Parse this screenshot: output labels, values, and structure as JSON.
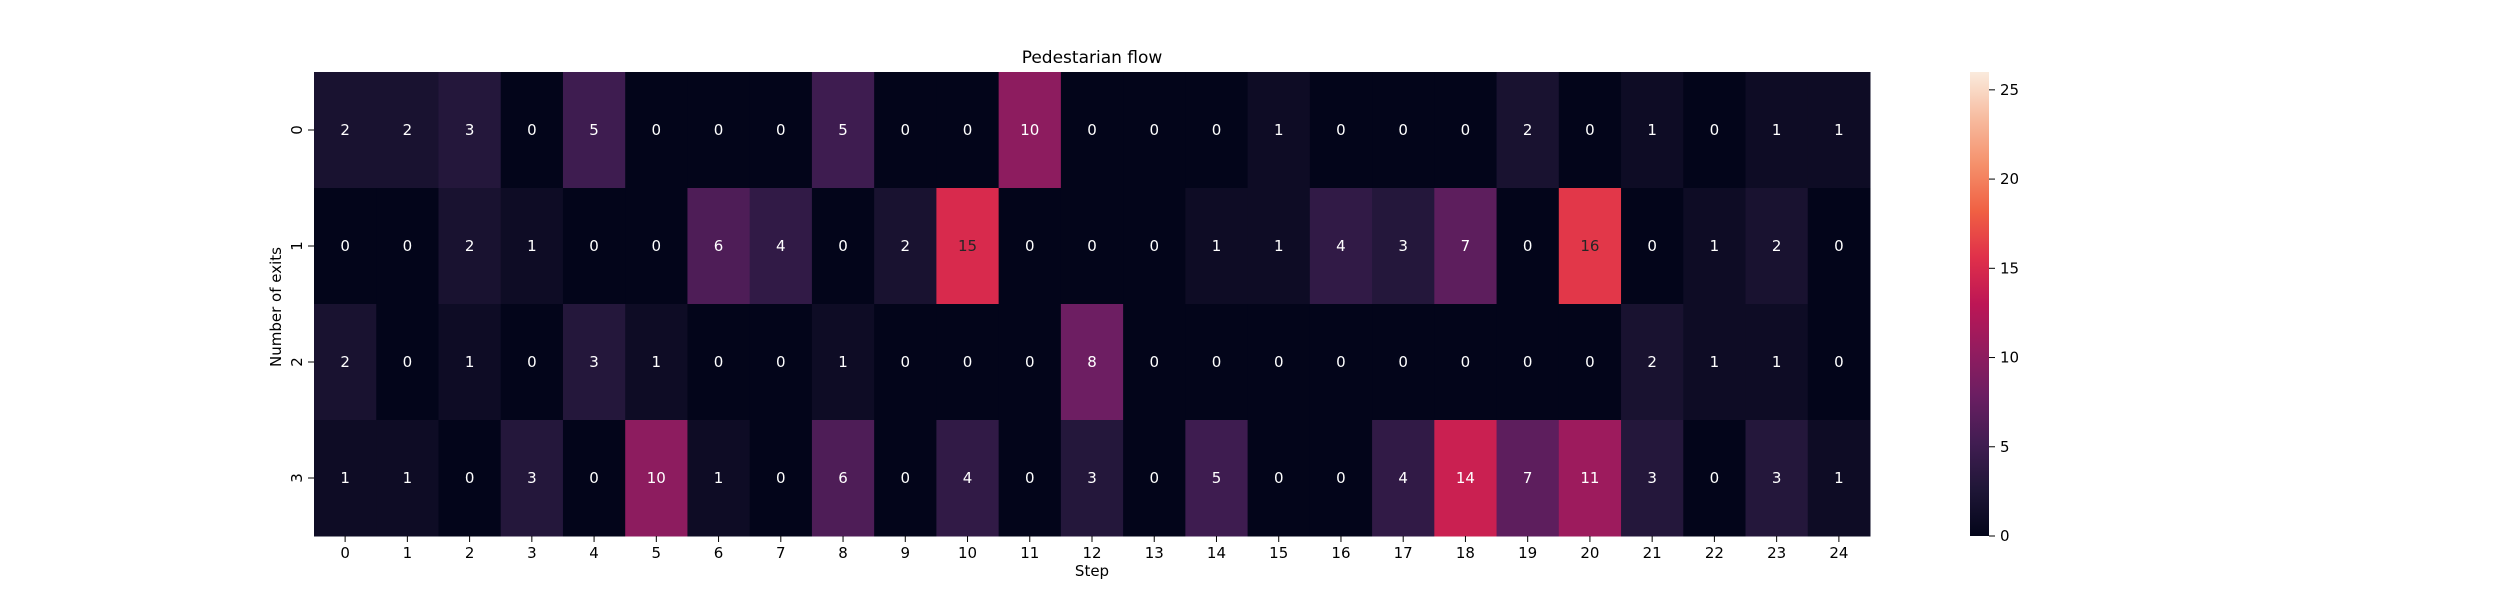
{
  "chart_data": {
    "type": "heatmap",
    "title": "Pedestarian flow",
    "xlabel": "Step",
    "ylabel": "Number of exits",
    "x_categories": [
      "0",
      "1",
      "2",
      "3",
      "4",
      "5",
      "6",
      "7",
      "8",
      "9",
      "10",
      "11",
      "12",
      "13",
      "14",
      "15",
      "16",
      "17",
      "18",
      "19",
      "20",
      "21",
      "22",
      "23",
      "24"
    ],
    "y_categories": [
      "0",
      "1",
      "2",
      "3"
    ],
    "values": [
      [
        2,
        2,
        3,
        0,
        5,
        0,
        0,
        0,
        5,
        0,
        0,
        10,
        0,
        0,
        0,
        1,
        0,
        0,
        0,
        2,
        0,
        1,
        0,
        1,
        1
      ],
      [
        0,
        0,
        2,
        1,
        0,
        0,
        6,
        4,
        0,
        2,
        15,
        0,
        0,
        0,
        1,
        1,
        4,
        3,
        7,
        0,
        16,
        0,
        1,
        2,
        0
      ],
      [
        2,
        0,
        1,
        0,
        3,
        1,
        0,
        0,
        1,
        0,
        0,
        0,
        8,
        0,
        0,
        0,
        0,
        0,
        0,
        0,
        0,
        2,
        1,
        1,
        0
      ],
      [
        1,
        1,
        0,
        3,
        0,
        10,
        1,
        0,
        6,
        0,
        4,
        0,
        3,
        0,
        5,
        0,
        0,
        4,
        14,
        7,
        11,
        3,
        0,
        3,
        1
      ]
    ],
    "colorbar": {
      "vmin": 0,
      "vmax": 26,
      "ticks": [
        0,
        5,
        10,
        15,
        20,
        25
      ],
      "colormap": "rocket"
    },
    "grid": false,
    "annotations": true
  }
}
